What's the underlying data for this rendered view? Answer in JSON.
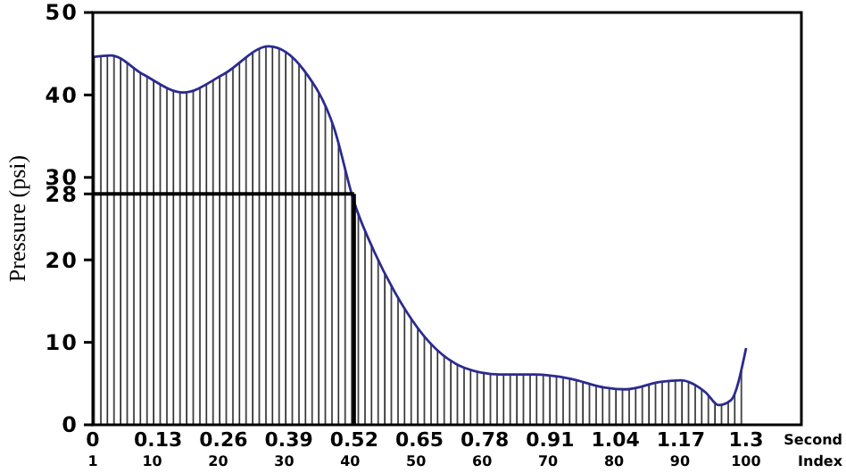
{
  "chart_data": {
    "type": "area",
    "ylabel": "Pressure (psi)",
    "xlabel": "Second",
    "x2label": "Index",
    "x": [
      0,
      0.036,
      0.1,
      0.18,
      0.26,
      0.35,
      0.42,
      0.48,
      0.52,
      0.56,
      0.6,
      0.67,
      0.74,
      0.81,
      0.88,
      0.95,
      1.02,
      1.06,
      1.13,
      1.17,
      1.22,
      1.245,
      1.27,
      1.3
    ],
    "series": [
      {
        "color": "#2b2b8f",
        "values": [
          44.6,
          44.8,
          42.5,
          40.3,
          42.5,
          45.9,
          43,
          36,
          27,
          21,
          16.2,
          10,
          6.9,
          6.1,
          6.1,
          5.6,
          4.5,
          4.3,
          5.2,
          5.4,
          3.9,
          2.4,
          3,
          9.3
        ]
      }
    ],
    "xlim": [
      0,
      1.41
    ],
    "xticks": [
      0,
      0.13,
      0.26,
      0.39,
      0.52,
      0.65,
      0.78,
      0.91,
      1.04,
      1.17,
      1.3
    ],
    "x2lim": [
      1,
      108.4
    ],
    "x2ticks": [
      1,
      10,
      20,
      30,
      40,
      50,
      60,
      70,
      80,
      90,
      100
    ],
    "ylim": [
      0,
      50
    ],
    "yticks": [
      0,
      10,
      20,
      28,
      30,
      40,
      50
    ],
    "ref_lines": [
      {
        "axis": "y",
        "value": 28
      },
      {
        "axis": "x",
        "value": 0.52
      }
    ],
    "grid": false
  }
}
